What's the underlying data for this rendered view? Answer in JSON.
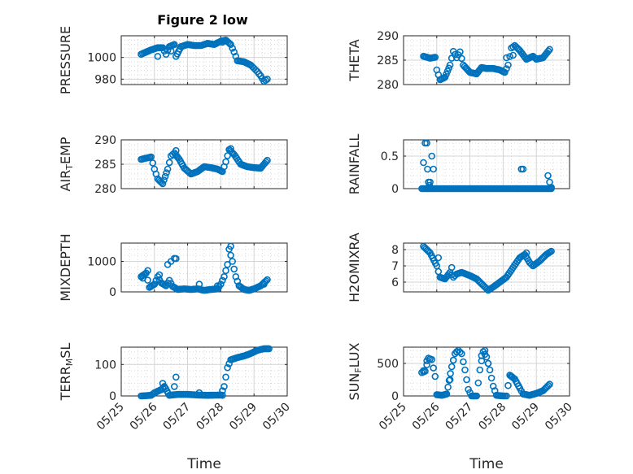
{
  "figure": {
    "title": "Figure 2 low"
  },
  "colors": {
    "marker": "#0072BD",
    "axis": "#262626",
    "grid": "#d4d4d4"
  },
  "chart_data": [
    {
      "type": "scatter",
      "name": "pressure",
      "ylabel": "PRESSURE",
      "ylabel_sub": "",
      "ylabel_tail": "",
      "ylim": [
        975,
        1020
      ],
      "yticks": [
        980,
        1000
      ],
      "xlim": [
        0,
        5
      ],
      "xticks": [
        "05/25",
        "05/26",
        "05/27",
        "05/28",
        "05/29",
        "05/30"
      ],
      "show_xticklabels": false,
      "xlabel": "",
      "keys": [
        [
          0.6,
          1003
        ],
        [
          0.9,
          1007
        ],
        [
          1.1,
          1009
        ],
        [
          1.25,
          1009
        ],
        [
          1.35,
          1003
        ],
        [
          1.45,
          1010
        ],
        [
          1.6,
          1012
        ],
        [
          1.65,
          1001
        ],
        [
          1.8,
          1010
        ],
        [
          2.0,
          1012
        ],
        [
          2.2,
          1011
        ],
        [
          2.4,
          1011
        ],
        [
          2.6,
          1013
        ],
        [
          2.8,
          1012
        ],
        [
          3.0,
          1015
        ],
        [
          3.15,
          1016
        ],
        [
          3.3,
          1012
        ],
        [
          3.4,
          1005
        ],
        [
          3.5,
          997
        ],
        [
          3.7,
          996
        ],
        [
          3.9,
          993
        ],
        [
          4.0,
          990
        ],
        [
          4.1,
          987
        ],
        [
          4.2,
          983
        ],
        [
          4.3,
          978
        ],
        [
          4.4,
          980
        ]
      ],
      "extra": [
        [
          1.1,
          1001
        ],
        [
          1.5,
          1006
        ],
        [
          3.05,
          1014
        ]
      ]
    },
    {
      "type": "scatter",
      "name": "theta",
      "ylabel": "THETA",
      "ylabel_sub": "",
      "ylabel_tail": "",
      "ylim": [
        280,
        290
      ],
      "yticks": [
        280,
        285,
        290
      ],
      "xlim": [
        0,
        5
      ],
      "xticks": [
        "05/25",
        "05/26",
        "05/27",
        "05/28",
        "05/29",
        "05/30"
      ],
      "show_xticklabels": false,
      "xlabel": "",
      "keys": [
        [
          0.6,
          285.8
        ],
        [
          0.8,
          285.4
        ],
        [
          0.95,
          285.6
        ],
        [
          1.0,
          283
        ],
        [
          1.1,
          281
        ],
        [
          1.25,
          281.5
        ],
        [
          1.4,
          284
        ],
        [
          1.5,
          286.8
        ],
        [
          1.6,
          285.5
        ],
        [
          1.7,
          286.7
        ],
        [
          1.8,
          284
        ],
        [
          2.0,
          282.5
        ],
        [
          2.2,
          282.2
        ],
        [
          2.35,
          283.5
        ],
        [
          2.5,
          283.3
        ],
        [
          2.7,
          283.3
        ],
        [
          2.9,
          283
        ],
        [
          3.05,
          282.5
        ],
        [
          3.15,
          284
        ],
        [
          3.25,
          287.5
        ],
        [
          3.35,
          288
        ],
        [
          3.5,
          287
        ],
        [
          3.7,
          285.2
        ],
        [
          3.9,
          285.8
        ],
        [
          4.0,
          285.2
        ],
        [
          4.2,
          285.5
        ],
        [
          4.4,
          287.2
        ]
      ],
      "extra": [
        [
          3.1,
          285.5
        ],
        [
          3.3,
          286
        ]
      ]
    },
    {
      "type": "scatter",
      "name": "air_temp",
      "ylabel": "AIR",
      "ylabel_sub": "T",
      "ylabel_tail": "EMP",
      "ylim": [
        280,
        290
      ],
      "yticks": [
        280,
        285,
        290
      ],
      "xlim": [
        0,
        5
      ],
      "xticks": [
        "05/25",
        "05/26",
        "05/27",
        "05/28",
        "05/29",
        "05/30"
      ],
      "show_xticklabels": false,
      "xlabel": "",
      "keys": [
        [
          0.6,
          286
        ],
        [
          0.9,
          286.5
        ],
        [
          1.0,
          284
        ],
        [
          1.1,
          282
        ],
        [
          1.25,
          281
        ],
        [
          1.4,
          284
        ],
        [
          1.5,
          286.7
        ],
        [
          1.6,
          287.3
        ],
        [
          1.75,
          286
        ],
        [
          1.9,
          284.2
        ],
        [
          2.1,
          283
        ],
        [
          2.3,
          283.5
        ],
        [
          2.5,
          284.5
        ],
        [
          2.7,
          284.3
        ],
        [
          2.9,
          284
        ],
        [
          3.05,
          283.5
        ],
        [
          3.15,
          285.5
        ],
        [
          3.25,
          288
        ],
        [
          3.4,
          287
        ],
        [
          3.6,
          285
        ],
        [
          3.8,
          284.5
        ],
        [
          4.0,
          284.3
        ],
        [
          4.2,
          284.2
        ],
        [
          4.4,
          285.8
        ]
      ],
      "extra": [
        [
          1.65,
          287.8
        ],
        [
          3.3,
          288.2
        ]
      ]
    },
    {
      "type": "scatter",
      "name": "rainfall",
      "ylabel": "RAINFALL",
      "ylabel_sub": "",
      "ylabel_tail": "",
      "ylim": [
        0,
        0.75
      ],
      "yticks": [
        0,
        0.5
      ],
      "xlim": [
        0,
        5
      ],
      "xticks": [
        "05/25",
        "05/26",
        "05/27",
        "05/28",
        "05/29",
        "05/30"
      ],
      "show_xticklabels": false,
      "xlabel": "",
      "keys": [
        [
          0.55,
          0
        ],
        [
          4.45,
          0
        ]
      ],
      "extra": [
        [
          0.6,
          0.4
        ],
        [
          0.65,
          0.7
        ],
        [
          0.7,
          0.7
        ],
        [
          0.72,
          0.3
        ],
        [
          0.75,
          0.1
        ],
        [
          0.78,
          0.05
        ],
        [
          0.8,
          0.1
        ],
        [
          0.85,
          0.5
        ],
        [
          0.9,
          0.3
        ],
        [
          3.55,
          0.3
        ],
        [
          3.6,
          0.3
        ],
        [
          4.35,
          0.2
        ],
        [
          4.4,
          0.1
        ],
        [
          4.45,
          0.02
        ]
      ]
    },
    {
      "type": "scatter",
      "name": "mixdepth",
      "ylabel": "MIXDEPTH",
      "ylabel_sub": "",
      "ylabel_tail": "",
      "ylim": [
        0,
        1600
      ],
      "yticks": [
        0,
        1000
      ],
      "xlim": [
        0,
        5
      ],
      "xticks": [
        "05/25",
        "05/26",
        "05/27",
        "05/28",
        "05/29",
        "05/30"
      ],
      "show_xticklabels": false,
      "xlabel": "",
      "keys": [
        [
          0.6,
          500
        ],
        [
          0.75,
          620
        ],
        [
          0.85,
          150
        ],
        [
          1.0,
          250
        ],
        [
          1.1,
          500
        ],
        [
          1.2,
          300
        ],
        [
          1.35,
          200
        ],
        [
          1.45,
          380
        ],
        [
          1.55,
          180
        ],
        [
          1.7,
          80
        ],
        [
          1.9,
          100
        ],
        [
          2.1,
          80
        ],
        [
          2.3,
          100
        ],
        [
          2.5,
          50
        ],
        [
          2.7,
          80
        ],
        [
          2.9,
          100
        ],
        [
          3.0,
          250
        ],
        [
          3.1,
          500
        ],
        [
          3.2,
          900
        ],
        [
          3.25,
          1400
        ],
        [
          3.35,
          1000
        ],
        [
          3.45,
          500
        ],
        [
          3.55,
          200
        ],
        [
          3.7,
          80
        ],
        [
          3.85,
          50
        ],
        [
          4.0,
          100
        ],
        [
          4.2,
          200
        ],
        [
          4.4,
          400
        ]
      ],
      "extra": [
        [
          0.65,
          450
        ],
        [
          0.8,
          700
        ],
        [
          1.15,
          560
        ],
        [
          1.4,
          900
        ],
        [
          1.5,
          1000
        ],
        [
          1.6,
          1100
        ],
        [
          1.65,
          1090
        ],
        [
          2.35,
          250
        ],
        [
          2.9,
          200
        ],
        [
          3.3,
          1500
        ],
        [
          4.3,
          250
        ]
      ]
    },
    {
      "type": "scatter",
      "name": "h2omixra",
      "ylabel": "H2OMIXRA",
      "ylabel_sub": "",
      "ylabel_tail": "",
      "ylim": [
        5.4,
        8.4
      ],
      "yticks": [
        6,
        7,
        8
      ],
      "xlim": [
        0,
        5
      ],
      "xticks": [
        "05/25",
        "05/26",
        "05/27",
        "05/28",
        "05/29",
        "05/30"
      ],
      "show_xticklabels": false,
      "xlabel": "",
      "keys": [
        [
          0.6,
          8.2
        ],
        [
          0.8,
          7.8
        ],
        [
          1.0,
          7
        ],
        [
          1.1,
          6.3
        ],
        [
          1.25,
          6.2
        ],
        [
          1.4,
          6.6
        ],
        [
          1.5,
          6.3
        ],
        [
          1.6,
          6.5
        ],
        [
          1.75,
          6.6
        ],
        [
          2.0,
          6.4
        ],
        [
          2.2,
          6.2
        ],
        [
          2.4,
          5.8
        ],
        [
          2.55,
          5.5
        ],
        [
          2.7,
          5.7
        ],
        [
          2.9,
          6
        ],
        [
          3.1,
          6.3
        ],
        [
          3.3,
          6.9
        ],
        [
          3.5,
          7.5
        ],
        [
          3.65,
          7.7
        ],
        [
          3.8,
          7.2
        ],
        [
          3.9,
          7
        ],
        [
          4.1,
          7.3
        ],
        [
          4.3,
          7.7
        ],
        [
          4.45,
          7.9
        ]
      ],
      "extra": [
        [
          1.05,
          7.5
        ],
        [
          1.45,
          6.9
        ],
        [
          3.7,
          7.8
        ]
      ]
    },
    {
      "type": "scatter",
      "name": "terr_msl",
      "ylabel": "TERR",
      "ylabel_sub": "M",
      "ylabel_tail": "SL",
      "ylim": [
        0,
        155
      ],
      "yticks": [
        0,
        100
      ],
      "xlim": [
        0,
        5
      ],
      "xticks": [
        "05/25",
        "05/26",
        "05/27",
        "05/28",
        "05/29",
        "05/30"
      ],
      "show_xticklabels": true,
      "xlabel": "Time",
      "keys": [
        [
          0.6,
          0
        ],
        [
          0.9,
          2
        ],
        [
          1.0,
          10
        ],
        [
          1.2,
          20
        ],
        [
          1.3,
          30
        ],
        [
          1.45,
          2
        ],
        [
          1.7,
          5
        ],
        [
          2.0,
          5
        ],
        [
          2.3,
          3
        ],
        [
          2.6,
          2
        ],
        [
          3.0,
          3
        ],
        [
          3.1,
          30
        ],
        [
          3.2,
          90
        ],
        [
          3.3,
          115
        ],
        [
          3.5,
          122
        ],
        [
          3.7,
          127
        ],
        [
          3.9,
          135
        ],
        [
          4.1,
          145
        ],
        [
          4.3,
          150
        ],
        [
          4.45,
          150
        ]
      ],
      "extra": [
        [
          1.25,
          40
        ],
        [
          1.3,
          28
        ],
        [
          1.6,
          30
        ],
        [
          1.65,
          60
        ],
        [
          2.35,
          10
        ],
        [
          3.05,
          2
        ]
      ]
    },
    {
      "type": "scatter",
      "name": "sun_flux",
      "ylabel": "SUN",
      "ylabel_sub": "F",
      "ylabel_tail": "LUX",
      "ylim": [
        0,
        750
      ],
      "yticks": [
        0,
        500
      ],
      "xlim": [
        0,
        5
      ],
      "xticks": [
        "05/25",
        "05/26",
        "05/27",
        "05/28",
        "05/29",
        "05/30"
      ],
      "show_xticklabels": true,
      "xlabel": "Time",
      "keys": [
        [
          0.55,
          360
        ],
        [
          0.65,
          380
        ],
        [
          0.75,
          580
        ],
        [
          0.85,
          560
        ],
        [
          0.95,
          300
        ],
        [
          1.0,
          20
        ],
        [
          1.15,
          10
        ],
        [
          1.3,
          30
        ],
        [
          1.45,
          450
        ],
        [
          1.55,
          650
        ],
        [
          1.65,
          700
        ],
        [
          1.75,
          650
        ],
        [
          1.85,
          400
        ],
        [
          1.95,
          100
        ],
        [
          2.05,
          0
        ],
        [
          2.2,
          0
        ],
        [
          2.3,
          400
        ],
        [
          2.4,
          680
        ],
        [
          2.5,
          600
        ],
        [
          2.6,
          400
        ],
        [
          2.7,
          150
        ],
        [
          2.8,
          10
        ],
        [
          3.0,
          0
        ],
        [
          3.1,
          0
        ],
        [
          3.2,
          320
        ],
        [
          3.35,
          260
        ],
        [
          3.5,
          120
        ],
        [
          3.6,
          30
        ],
        [
          3.8,
          10
        ],
        [
          4.0,
          40
        ],
        [
          4.2,
          80
        ],
        [
          4.4,
          180
        ]
      ],
      "extra": [
        [
          0.6,
          390
        ],
        [
          0.7,
          540
        ],
        [
          1.4,
          250
        ],
        [
          1.5,
          550
        ],
        [
          1.6,
          680
        ],
        [
          2.35,
          620
        ],
        [
          2.45,
          700
        ],
        [
          2.55,
          500
        ],
        [
          3.25,
          300
        ]
      ]
    }
  ]
}
